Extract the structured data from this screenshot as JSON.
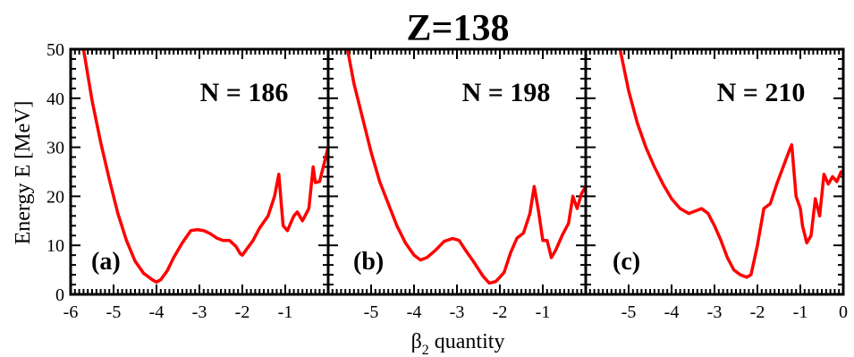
{
  "title": "Z=138",
  "chart_data": {
    "type": "line",
    "xlabel_symbol": "β",
    "xlabel_subscript": "2",
    "xlabel_rest": " quantity",
    "ylabel": "Energy  E  [MeV]",
    "ylim": [
      0,
      50
    ],
    "yticks": [
      "0",
      "10",
      "20",
      "30",
      "40",
      "50"
    ],
    "line_color": "#ff0000",
    "panels": [
      {
        "label": "(a)",
        "n_label": "N = 186",
        "xlim": [
          -6,
          0
        ],
        "xticks": [
          {
            "v": -6,
            "t": "-6"
          },
          {
            "v": -5,
            "t": "-5"
          },
          {
            "v": -4,
            "t": "-4"
          },
          {
            "v": -3,
            "t": "-3"
          },
          {
            "v": -2,
            "t": "-2"
          },
          {
            "v": -1,
            "t": "-1"
          }
        ],
        "x": [
          -5.7,
          -5.5,
          -5.3,
          -5.1,
          -4.9,
          -4.7,
          -4.5,
          -4.3,
          -4.1,
          -4.0,
          -3.9,
          -3.75,
          -3.6,
          -3.4,
          -3.2,
          -3.05,
          -2.9,
          -2.75,
          -2.6,
          -2.45,
          -2.3,
          -2.15,
          -2.05,
          -2.0,
          -1.9,
          -1.75,
          -1.6,
          -1.4,
          -1.25,
          -1.15,
          -1.05,
          -0.95,
          -0.8,
          -0.72,
          -0.6,
          -0.45,
          -0.35,
          -0.3,
          -0.2,
          -0.1,
          0.0
        ],
        "y": [
          50.0,
          39.5,
          31.0,
          23.5,
          16.5,
          11.0,
          6.8,
          4.3,
          3.0,
          2.5,
          3.0,
          4.8,
          7.5,
          10.5,
          13.0,
          13.2,
          13.0,
          12.4,
          11.5,
          11.0,
          11.0,
          9.8,
          8.3,
          8.0,
          9.2,
          11.0,
          13.5,
          16.0,
          20.0,
          24.5,
          14.0,
          13.0,
          16.0,
          16.8,
          15.0,
          17.5,
          26.0,
          22.8,
          23.0,
          26.5,
          30.0
        ]
      },
      {
        "label": "(b)",
        "n_label": "N = 198",
        "xlim": [
          -6,
          0
        ],
        "xticks": [
          {
            "v": -5,
            "t": "-5"
          },
          {
            "v": -4,
            "t": "-4"
          },
          {
            "v": -3,
            "t": "-3"
          },
          {
            "v": -2,
            "t": "-2"
          },
          {
            "v": -1,
            "t": "-1"
          }
        ],
        "x": [
          -5.55,
          -5.4,
          -5.2,
          -5.0,
          -4.8,
          -4.6,
          -4.4,
          -4.2,
          -4.0,
          -3.85,
          -3.7,
          -3.5,
          -3.3,
          -3.1,
          -2.95,
          -2.8,
          -2.6,
          -2.4,
          -2.25,
          -2.1,
          -2.0,
          -1.9,
          -1.75,
          -1.6,
          -1.45,
          -1.3,
          -1.2,
          -1.1,
          -1.0,
          -0.9,
          -0.8,
          -0.7,
          -0.55,
          -0.4,
          -0.3,
          -0.2,
          -0.1,
          0.0
        ],
        "y": [
          50.0,
          43.0,
          36.0,
          29.0,
          23.0,
          18.5,
          14.0,
          10.5,
          8.0,
          7.0,
          7.5,
          9.0,
          10.8,
          11.4,
          11.0,
          9.0,
          6.5,
          3.8,
          2.3,
          2.6,
          3.5,
          4.5,
          8.5,
          11.5,
          12.5,
          16.5,
          22.0,
          17.0,
          11.0,
          11.0,
          7.5,
          9.0,
          12.0,
          14.5,
          20.0,
          17.5,
          20.5,
          22.0
        ]
      },
      {
        "label": "(c)",
        "n_label": "N = 210",
        "xlim": [
          -6,
          0
        ],
        "xticks": [
          {
            "v": -5,
            "t": "-5"
          },
          {
            "v": -4,
            "t": "-4"
          },
          {
            "v": -3,
            "t": "-3"
          },
          {
            "v": -2,
            "t": "-2"
          },
          {
            "v": -1,
            "t": "-1"
          },
          {
            "v": 0,
            "t": "0"
          }
        ],
        "x": [
          -5.2,
          -5.0,
          -4.8,
          -4.6,
          -4.4,
          -4.2,
          -4.0,
          -3.8,
          -3.6,
          -3.45,
          -3.3,
          -3.15,
          -3.0,
          -2.85,
          -2.7,
          -2.55,
          -2.4,
          -2.25,
          -2.15,
          -2.0,
          -1.85,
          -1.7,
          -1.55,
          -1.4,
          -1.25,
          -1.2,
          -1.1,
          -1.0,
          -0.95,
          -0.85,
          -0.75,
          -0.65,
          -0.55,
          -0.45,
          -0.35,
          -0.25,
          -0.15,
          -0.05,
          0.0
        ],
        "y": [
          50.0,
          41.5,
          35.0,
          30.0,
          26.0,
          22.5,
          19.5,
          17.5,
          16.5,
          17.0,
          17.5,
          16.5,
          14.0,
          11.0,
          7.5,
          5.0,
          4.0,
          3.5,
          4.0,
          10.0,
          17.5,
          18.5,
          22.5,
          26.0,
          29.5,
          30.5,
          20.0,
          17.5,
          14.0,
          10.5,
          12.0,
          19.5,
          16.0,
          24.5,
          22.5,
          24.0,
          23.0,
          25.0,
          25.0
        ]
      }
    ]
  }
}
